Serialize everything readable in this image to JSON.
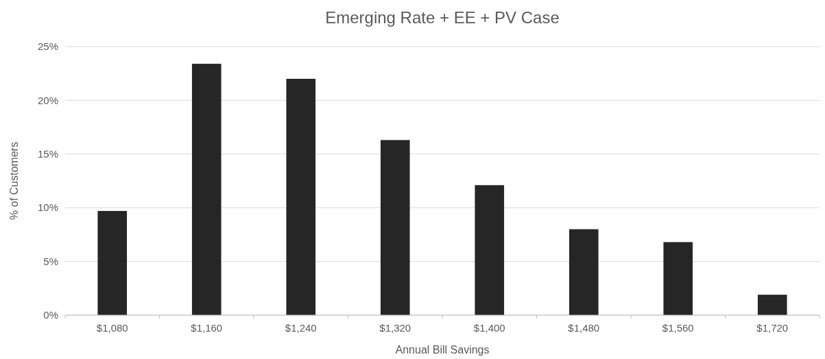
{
  "chart_data": {
    "type": "bar",
    "title": "Emerging Rate + EE + PV Case",
    "xlabel": "Annual Bill Savings",
    "ylabel": "% of Customers",
    "categories": [
      "$1,080",
      "$1,160",
      "$1,240",
      "$1,320",
      "$1,400",
      "$1,480",
      "$1,560",
      "$1,720"
    ],
    "values": [
      9.7,
      23.4,
      22.0,
      16.3,
      12.1,
      8.0,
      6.8,
      1.9
    ],
    "color": "#262626",
    "ylim": [
      0,
      25
    ],
    "yticks": [
      {
        "value": 0,
        "label": "0%"
      },
      {
        "value": 5,
        "label": "5%"
      },
      {
        "value": 10,
        "label": "10%"
      },
      {
        "value": 15,
        "label": "15%"
      },
      {
        "value": 20,
        "label": "20%"
      },
      {
        "value": 25,
        "label": "25%"
      }
    ],
    "grid": "y"
  }
}
